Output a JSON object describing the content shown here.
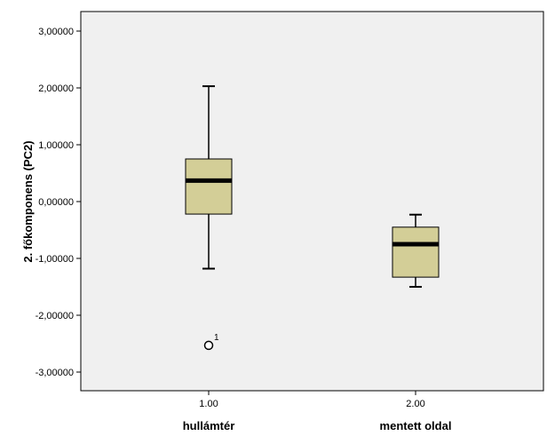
{
  "chart_data": {
    "type": "boxplot",
    "ylabel": "2. főkomponens (PC2)",
    "ylim": [
      -3.35,
      3.3
    ],
    "y_ticks": [
      3,
      2,
      1,
      0,
      -1,
      -2,
      -3
    ],
    "y_tick_labels": [
      "3,00000",
      "2,00000",
      "1,00000",
      "0,00000",
      "-1,00000",
      "-2,00000",
      "-3,00000"
    ],
    "categories": [
      "1.00",
      "2.00"
    ],
    "category_names": [
      "hullámtér",
      "mentett oldal"
    ],
    "series": [
      {
        "category": "1.00",
        "whisker_low": -1.18,
        "q1": -0.22,
        "median": 0.37,
        "q3": 0.75,
        "whisker_high": 2.03,
        "outliers": [
          {
            "value": -2.53,
            "label": "1"
          }
        ]
      },
      {
        "category": "2.00",
        "whisker_low": -1.5,
        "q1": -1.33,
        "median": -0.75,
        "q3": -0.45,
        "whisker_high": -0.23,
        "outliers": []
      }
    ],
    "grid": false,
    "colors": {
      "plot_background": "#f0f0f0",
      "box_fill": "#d3ce97",
      "median": "#000000"
    }
  }
}
